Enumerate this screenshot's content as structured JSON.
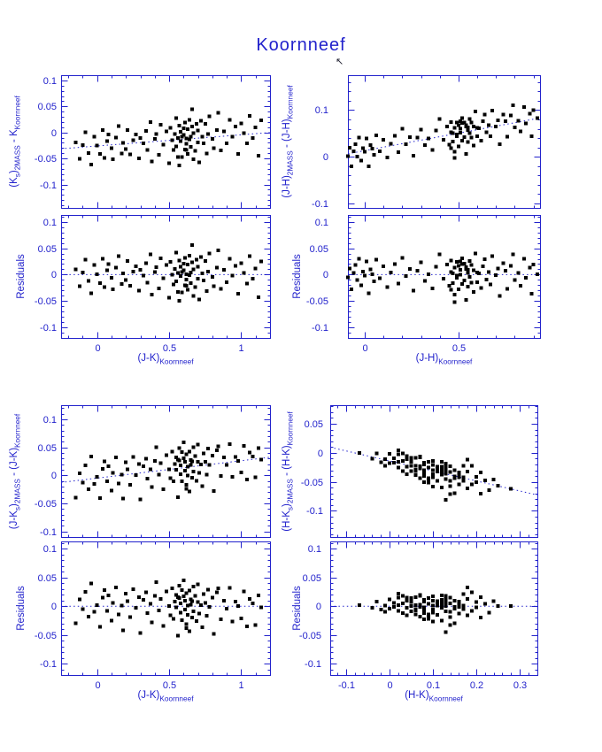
{
  "title": "Koornneef",
  "cursor": {
    "name": "mouse-cursor",
    "glyph": "↖"
  },
  "colors": {
    "axis": "#2222cc",
    "points": "#000000",
    "background": "#ffffff"
  },
  "note": "Each group: main panel plots y = fit.intercept + fit.slope*x + residuals[i] vs x; residual panel plots residuals[i] vs x. Dotted line = linear fit (main) or zero line (residual).",
  "chart_data": [
    {
      "id": "ks-vs-jk",
      "type": "scatter",
      "x_label": "(J-K)_{Koornneef}",
      "y_label_main": "(K_{s})_{2MASS} - K_{Koornneef}",
      "y_label_residual": "Residuals",
      "fit": {
        "intercept": -0.026,
        "slope": 0.0215
      },
      "main": {
        "xlim": [
          -0.25,
          1.2
        ],
        "ylim": [
          -0.145,
          0.11
        ],
        "yticks": {
          "values": [
            0.1,
            0.05,
            0,
            -0.05,
            -0.1
          ],
          "labels": [
            "0.1",
            "0.05",
            "0",
            "-0.05",
            "-0.1"
          ]
        },
        "y_minor_step": 0.01,
        "xticks": {
          "values": [
            0,
            0.5,
            1
          ],
          "labels": [
            "0",
            "0.5",
            "1"
          ]
        },
        "x_minor_step": 0.1,
        "show_x_tick_labels": false,
        "line": "fit"
      },
      "residual": {
        "xlim": [
          -0.25,
          1.2
        ],
        "ylim": [
          -0.12,
          0.113
        ],
        "yticks": {
          "values": [
            0.1,
            0.05,
            0,
            -0.05,
            -0.1
          ],
          "labels": [
            "0.1",
            "0.05",
            "0",
            "-0.05",
            "-0.1"
          ]
        },
        "y_minor_step": 0.01,
        "xticks": {
          "values": [
            0,
            0.5,
            1
          ],
          "labels": [
            "0",
            "0.5",
            "1"
          ]
        },
        "x_minor_step": 0.1,
        "show_x_tick_labels": true,
        "line": "zero"
      },
      "x": [
        -0.15,
        -0.12,
        -0.1,
        -0.08,
        -0.06,
        -0.04,
        -0.02,
        0.0,
        0.02,
        0.04,
        0.05,
        0.07,
        0.08,
        0.1,
        0.11,
        0.13,
        0.15,
        0.17,
        0.18,
        0.2,
        0.21,
        0.23,
        0.25,
        0.27,
        0.29,
        0.3,
        0.32,
        0.34,
        0.35,
        0.37,
        0.38,
        0.4,
        0.41,
        0.43,
        0.44,
        0.46,
        0.48,
        0.5,
        0.51,
        0.52,
        0.53,
        0.54,
        0.55,
        0.55,
        0.56,
        0.57,
        0.57,
        0.58,
        0.58,
        0.59,
        0.6,
        0.6,
        0.61,
        0.61,
        0.62,
        0.62,
        0.63,
        0.63,
        0.64,
        0.64,
        0.65,
        0.65,
        0.66,
        0.67,
        0.67,
        0.68,
        0.69,
        0.7,
        0.7,
        0.71,
        0.72,
        0.73,
        0.74,
        0.75,
        0.76,
        0.77,
        0.78,
        0.8,
        0.81,
        0.83,
        0.84,
        0.86,
        0.88,
        0.9,
        0.92,
        0.94,
        0.96,
        0.98,
        1.0,
        1.02,
        1.04,
        1.06,
        1.08,
        1.1,
        1.12,
        1.14,
        0.59,
        0.62,
        0.66,
        0.56
      ],
      "residuals": [
        0.01,
        -0.022,
        0.004,
        0.028,
        -0.012,
        -0.035,
        0.018,
        0.001,
        -0.016,
        0.03,
        -0.024,
        0.008,
        0.02,
        -0.006,
        -0.028,
        0.013,
        0.035,
        -0.018,
        0.002,
        -0.01,
        0.026,
        -0.021,
        0.006,
        0.016,
        -0.03,
        0.009,
        -0.002,
        0.022,
        -0.015,
        0.038,
        -0.038,
        0.005,
        0.014,
        -0.026,
        0.031,
        -0.007,
        0.018,
        -0.044,
        0.024,
        0.0,
        -0.019,
        0.011,
        0.042,
        -0.013,
        0.003,
        -0.05,
        0.027,
        -0.003,
        0.015,
        -0.034,
        0.021,
        0.008,
        -0.02,
        0.032,
        -0.009,
        0.001,
        -0.029,
        0.019,
        -0.001,
        0.036,
        -0.016,
        0.004,
        0.023,
        -0.04,
        0.01,
        -0.024,
        0.028,
        -0.008,
        0.015,
        -0.047,
        0.033,
        0.002,
        -0.011,
        0.026,
        -0.031,
        0.006,
        0.04,
        -0.004,
        -0.022,
        0.013,
        0.046,
        -0.027,
        0.009,
        -0.014,
        0.03,
        -0.002,
        0.017,
        -0.036,
        0.022,
        0.003,
        -0.017,
        0.035,
        -0.008,
        0.012,
        -0.043,
        0.025,
        0.005,
        -0.021,
        0.056,
        -0.033
      ]
    },
    {
      "id": "jh-vs-jh",
      "type": "scatter",
      "x_label": "(J-H)_{Koornneef}",
      "y_label_main": "(J-H)_{2MASS} - (J-H)_{Koornneef}",
      "y_label_residual": "Residuals",
      "fit": {
        "intercept": 0.013,
        "slope": 0.075
      },
      "main": {
        "xlim": [
          -0.09,
          0.935
        ],
        "ylim": [
          -0.11,
          0.175
        ],
        "yticks": {
          "values": [
            0.1,
            0,
            -0.1
          ],
          "labels": [
            "0.1",
            "0",
            "-0.1"
          ]
        },
        "y_minor_step": 0.02,
        "xticks": {
          "values": [
            0,
            0.5
          ],
          "labels": [
            "0",
            "0.5"
          ]
        },
        "x_minor_step": 0.1,
        "show_x_tick_labels": false,
        "line": "fit"
      },
      "residual": {
        "xlim": [
          -0.09,
          0.935
        ],
        "ylim": [
          -0.12,
          0.113
        ],
        "yticks": {
          "values": [
            0.1,
            0.05,
            0,
            -0.05,
            -0.1
          ],
          "labels": [
            "0.1",
            "0.05",
            "0",
            "-0.05",
            "-0.1"
          ]
        },
        "y_minor_step": 0.01,
        "xticks": {
          "values": [
            0,
            0.5
          ],
          "labels": [
            "0",
            "0.5"
          ]
        },
        "x_minor_step": 0.1,
        "show_x_tick_labels": true,
        "line": "zero"
      },
      "x": [
        -0.13,
        -0.11,
        -0.1,
        -0.09,
        -0.08,
        -0.07,
        -0.06,
        -0.05,
        -0.04,
        -0.03,
        -0.02,
        -0.01,
        0.0,
        0.01,
        0.02,
        0.03,
        0.04,
        0.05,
        0.06,
        0.08,
        0.1,
        0.12,
        0.14,
        0.16,
        0.18,
        0.2,
        0.22,
        0.24,
        0.26,
        0.28,
        0.3,
        0.32,
        0.34,
        0.36,
        0.38,
        0.4,
        0.42,
        0.44,
        0.45,
        0.46,
        0.46,
        0.47,
        0.47,
        0.48,
        0.48,
        0.49,
        0.49,
        0.5,
        0.5,
        0.51,
        0.51,
        0.52,
        0.52,
        0.53,
        0.53,
        0.54,
        0.54,
        0.55,
        0.55,
        0.56,
        0.56,
        0.57,
        0.58,
        0.58,
        0.59,
        0.6,
        0.61,
        0.62,
        0.63,
        0.64,
        0.65,
        0.66,
        0.67,
        0.68,
        0.7,
        0.71,
        0.72,
        0.74,
        0.75,
        0.76,
        0.78,
        0.79,
        0.8,
        0.82,
        0.83,
        0.85,
        0.86,
        0.88,
        0.89,
        0.9,
        0.92,
        0.57,
        0.51,
        0.48,
        0.54,
        0.6,
        0.46,
        0.52,
        0.49,
        0.55
      ],
      "residuals": [
        0.008,
        -0.015,
        0.022,
        -0.005,
        0.012,
        -0.028,
        0.003,
        0.018,
        -0.01,
        0.03,
        -0.02,
        0.006,
        -0.002,
        0.025,
        -0.035,
        0.01,
        0.001,
        -0.013,
        0.028,
        -0.007,
        0.016,
        -0.024,
        0.004,
        0.02,
        -0.017,
        0.032,
        -0.003,
        0.011,
        -0.03,
        0.007,
        0.023,
        -0.012,
        0.001,
        -0.026,
        0.015,
        0.038,
        -0.008,
        0.019,
        -0.021,
        0.005,
        0.027,
        -0.016,
        0.002,
        -0.038,
        0.013,
        0.024,
        -0.006,
        0.017,
        -0.028,
        0.009,
        0.0,
        -0.018,
        0.031,
        -0.011,
        0.021,
        -0.048,
        0.014,
        0.003,
        -0.023,
        0.026,
        -0.004,
        0.018,
        -0.033,
        0.008,
        0.04,
        -0.014,
        0.002,
        -0.025,
        0.016,
        0.029,
        -0.009,
        0.005,
        -0.019,
        0.035,
        -0.001,
        0.012,
        -0.04,
        0.022,
        0.007,
        -0.027,
        0.017,
        0.038,
        -0.01,
        0.003,
        -0.021,
        0.03,
        -0.006,
        0.013,
        -0.036,
        0.019,
        0.001,
        -0.015,
        0.025,
        -0.052,
        0.011,
        0.004,
        -0.029,
        0.02,
        -0.002,
        0.009
      ]
    },
    {
      "id": "jks-vs-jk",
      "type": "scatter",
      "x_label": "(J-K)_{Koornneef}",
      "y_label_main": "(J-K_{s})_{2MASS} - (J-K)_{Koornneef}",
      "y_label_residual": "Residuals",
      "fit": {
        "intercept": -0.005,
        "slope": 0.031
      },
      "main": {
        "xlim": [
          -0.25,
          1.2
        ],
        "ylim": [
          -0.11,
          0.125
        ],
        "yticks": {
          "values": [
            0.1,
            0.05,
            0,
            -0.05,
            -0.1
          ],
          "labels": [
            "0.1",
            "0.05",
            "0",
            "-0.05",
            "-0.1"
          ]
        },
        "y_minor_step": 0.01,
        "xticks": {
          "values": [
            0,
            0.5,
            1
          ],
          "labels": [
            "0",
            "0.5",
            "1"
          ]
        },
        "x_minor_step": 0.1,
        "show_x_tick_labels": false,
        "line": "fit"
      },
      "residual": {
        "xlim": [
          -0.25,
          1.2
        ],
        "ylim": [
          -0.12,
          0.113
        ],
        "yticks": {
          "values": [
            0.1,
            0.05,
            0,
            -0.05,
            -0.1
          ],
          "labels": [
            "0.1",
            "0.05",
            "0",
            "-0.05",
            "-0.1"
          ]
        },
        "y_minor_step": 0.01,
        "xticks": {
          "values": [
            0,
            0.5,
            1
          ],
          "labels": [
            "0",
            "0.5",
            "1"
          ]
        },
        "x_minor_step": 0.1,
        "show_x_tick_labels": true,
        "line": "zero"
      },
      "x": [
        -0.15,
        -0.12,
        -0.1,
        -0.08,
        -0.06,
        -0.04,
        -0.02,
        0.0,
        0.02,
        0.04,
        0.05,
        0.07,
        0.08,
        0.1,
        0.11,
        0.13,
        0.15,
        0.17,
        0.18,
        0.2,
        0.21,
        0.23,
        0.25,
        0.27,
        0.29,
        0.3,
        0.32,
        0.34,
        0.35,
        0.37,
        0.38,
        0.4,
        0.41,
        0.43,
        0.44,
        0.46,
        0.48,
        0.5,
        0.51,
        0.52,
        0.53,
        0.54,
        0.55,
        0.55,
        0.56,
        0.57,
        0.57,
        0.58,
        0.58,
        0.59,
        0.6,
        0.6,
        0.61,
        0.61,
        0.62,
        0.62,
        0.63,
        0.63,
        0.64,
        0.64,
        0.65,
        0.65,
        0.66,
        0.67,
        0.67,
        0.68,
        0.69,
        0.7,
        0.7,
        0.71,
        0.72,
        0.73,
        0.74,
        0.75,
        0.76,
        0.77,
        0.78,
        0.8,
        0.81,
        0.83,
        0.84,
        0.86,
        0.88,
        0.9,
        0.92,
        0.94,
        0.96,
        0.98,
        1.0,
        1.02,
        1.04,
        1.06,
        1.08,
        1.1,
        1.12,
        1.14,
        0.59,
        0.62,
        0.66,
        0.56
      ],
      "residuals": [
        -0.03,
        0.012,
        -0.005,
        0.025,
        -0.018,
        0.04,
        -0.01,
        0.002,
        -0.036,
        0.015,
        0.028,
        -0.008,
        0.019,
        -0.025,
        0.006,
        0.033,
        -0.014,
        0.001,
        -0.042,
        0.022,
        0.009,
        -0.019,
        0.03,
        -0.003,
        0.016,
        -0.047,
        0.011,
        0.024,
        -0.012,
        0.004,
        -0.028,
        0.018,
        0.042,
        -0.007,
        0.013,
        -0.034,
        0.026,
        0.0,
        -0.016,
        0.031,
        -0.022,
        0.008,
        -0.002,
        0.02,
        -0.051,
        0.014,
        0.036,
        -0.011,
        0.005,
        -0.024,
        0.017,
        0.045,
        -0.006,
        0.01,
        -0.031,
        0.023,
        0.001,
        -0.015,
        0.027,
        -0.044,
        0.012,
        0.003,
        -0.02,
        0.034,
        -0.009,
        0.018,
        -0.026,
        0.007,
        0.038,
        -0.013,
        0.002,
        -0.037,
        0.021,
        0.006,
        -0.017,
        0.029,
        -0.001,
        0.015,
        -0.048,
        0.024,
        0.031,
        -0.023,
        0.01,
        -0.004,
        0.032,
        -0.027,
        0.008,
        0.0,
        -0.021,
        0.026,
        -0.035,
        0.013,
        0.005,
        -0.033,
        0.019,
        -0.002,
        0.028,
        -0.038,
        0.009,
        0.016
      ]
    },
    {
      "id": "hks-vs-hk",
      "type": "scatter",
      "x_label": "(H-K)_{Koornneef}",
      "y_label_main": "(H-K_{s})_{2MASS} - (H-K)_{Koornneef}",
      "y_label_residual": "Residuals",
      "fit": {
        "intercept": -0.014,
        "slope": -0.172
      },
      "main": {
        "xlim": [
          -0.137,
          0.341
        ],
        "ylim": [
          -0.145,
          0.082
        ],
        "yticks": {
          "values": [
            0.05,
            0,
            -0.05,
            -0.1
          ],
          "labels": [
            "0.05",
            "0",
            "-0.05",
            "-0.1"
          ]
        },
        "y_minor_step": 0.01,
        "xticks": {
          "values": [
            -0.1,
            0,
            0.1,
            0.2,
            0.3
          ],
          "labels": [
            "-0.1",
            "0",
            "0.1",
            "0.2",
            "0.3"
          ]
        },
        "x_minor_step": 0.02,
        "show_x_tick_labels": false,
        "line": "fit"
      },
      "residual": {
        "xlim": [
          -0.137,
          0.341
        ],
        "ylim": [
          -0.12,
          0.113
        ],
        "yticks": {
          "values": [
            0.1,
            0.05,
            0,
            -0.05,
            -0.1
          ],
          "labels": [
            "0.1",
            "0.05",
            "0",
            "-0.05",
            "-0.1"
          ]
        },
        "y_minor_step": 0.01,
        "xticks": {
          "values": [
            -0.1,
            0,
            0.1,
            0.2,
            0.3
          ],
          "labels": [
            "-0.1",
            "0",
            "0.1",
            "0.2",
            "0.3"
          ]
        },
        "x_minor_step": 0.02,
        "show_x_tick_labels": true,
        "line": "zero"
      },
      "x": [
        -0.07,
        -0.04,
        -0.03,
        -0.02,
        -0.01,
        -0.01,
        0.0,
        0.0,
        0.01,
        0.01,
        0.02,
        0.02,
        0.02,
        0.03,
        0.03,
        0.03,
        0.04,
        0.04,
        0.04,
        0.05,
        0.05,
        0.05,
        0.05,
        0.06,
        0.06,
        0.06,
        0.07,
        0.07,
        0.07,
        0.07,
        0.08,
        0.08,
        0.08,
        0.08,
        0.09,
        0.09,
        0.09,
        0.1,
        0.1,
        0.1,
        0.1,
        0.11,
        0.11,
        0.11,
        0.12,
        0.12,
        0.12,
        0.12,
        0.13,
        0.13,
        0.13,
        0.13,
        0.14,
        0.14,
        0.14,
        0.15,
        0.15,
        0.15,
        0.16,
        0.16,
        0.16,
        0.17,
        0.17,
        0.17,
        0.18,
        0.18,
        0.19,
        0.19,
        0.2,
        0.2,
        0.21,
        0.21,
        0.22,
        0.23,
        0.24,
        0.25,
        0.28,
        0.05,
        0.08,
        0.11,
        0.14,
        0.06,
        0.09,
        0.12,
        0.15,
        0.07,
        0.1,
        0.13,
        0.16,
        0.04,
        0.08,
        0.12,
        0.02,
        0.06,
        0.1,
        0.14,
        0.18,
        0.11,
        0.09,
        0.13
      ],
      "residuals": [
        0.002,
        -0.003,
        0.008,
        -0.006,
        0.001,
        -0.01,
        0.012,
        -0.004,
        0.006,
        -0.001,
        0.015,
        -0.008,
        0.002,
        0.018,
        -0.012,
        0.005,
        -0.003,
        0.01,
        -0.016,
        0.007,
        0.0,
        -0.009,
        0.013,
        -0.005,
        0.016,
        -0.014,
        0.003,
        -0.001,
        0.02,
        -0.018,
        0.008,
        -0.007,
        0.011,
        -0.002,
        0.014,
        -0.022,
        0.004,
        0.001,
        -0.011,
        0.017,
        -0.006,
        0.009,
        -0.015,
        0.002,
        0.019,
        -0.003,
        -0.025,
        0.006,
        -0.045,
        0.012,
        -0.009,
        0.0,
        0.015,
        -0.019,
        0.005,
        -0.001,
        0.01,
        -0.03,
        0.008,
        0.003,
        -0.013,
        0.021,
        -0.005,
        0.001,
        -0.016,
        0.013,
        -0.008,
        0.024,
        -0.002,
        0.007,
        -0.02,
        0.016,
        0.004,
        -0.011,
        0.009,
        0.0,
        0.0,
        0.014,
        -0.023,
        0.005,
        -0.01,
        0.002,
        -0.017,
        0.011,
        -0.004,
        0.018,
        -0.027,
        0.006,
        -0.001,
        0.015,
        -0.012,
        0.003,
        0.022,
        -0.007,
        0.01,
        -0.033,
        0.033,
        0.001,
        -0.014,
        0.018
      ]
    }
  ]
}
